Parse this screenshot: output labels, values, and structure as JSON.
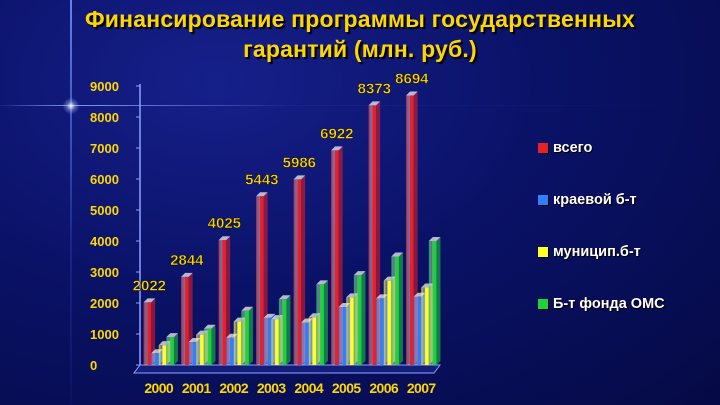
{
  "title": {
    "line1": "Финансирование программы государственных",
    "line2": "гарантий (млн. руб.)"
  },
  "colors": {
    "title": "#ffd700",
    "labels": "#ffd700",
    "series": [
      "#e8202a",
      "#2f7fff",
      "#ffff2a",
      "#1fd13a"
    ]
  },
  "chart_data": {
    "type": "bar",
    "categories": [
      "2000",
      "2001",
      "2002",
      "2003",
      "2004",
      "2005",
      "2006",
      "2007"
    ],
    "ylim": [
      0,
      9000
    ],
    "yticks": [
      "0",
      "1000",
      "2000",
      "3000",
      "4000",
      "5000",
      "6000",
      "7000",
      "8000",
      "9000"
    ],
    "grid": false,
    "legend_position": "right",
    "series": [
      {
        "name": "всего",
        "values": [
          2022,
          2844,
          4025,
          5443,
          5986,
          6922,
          8373,
          8694
        ],
        "labels": [
          "2022",
          "2844",
          "4025",
          "5443",
          "5986",
          "6922",
          "8373",
          "8694"
        ]
      },
      {
        "name": "краевой б-т",
        "values": [
          380,
          740,
          880,
          1520,
          1370,
          1870,
          2150,
          2200
        ]
      },
      {
        "name": "муницип.б-т",
        "values": [
          640,
          980,
          1400,
          1480,
          1540,
          2180,
          2720,
          2500
        ]
      },
      {
        "name": "Б-т фонда ОМС",
        "values": [
          900,
          1170,
          1750,
          2120,
          2600,
          2900,
          3500,
          4000
        ]
      }
    ]
  }
}
